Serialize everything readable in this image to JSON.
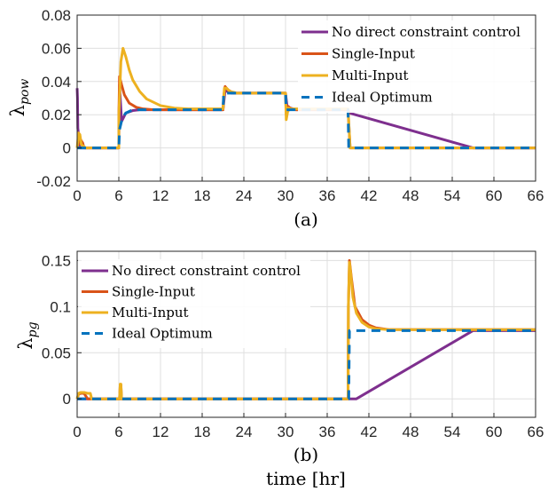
{
  "chart_data": [
    {
      "type": "line",
      "subtitle": "(a)",
      "xlabel": "",
      "ylabel": "λ",
      "ylabel_sub": "pow",
      "xlim": [
        0,
        66
      ],
      "ylim": [
        -0.02,
        0.08
      ],
      "xticks": [
        "0",
        "6",
        "12",
        "18",
        "24",
        "30",
        "36",
        "42",
        "48",
        "54",
        "60",
        "66"
      ],
      "yticks": [
        "-0.02",
        "0",
        "0.02",
        "0.04",
        "0.06",
        "0.08"
      ],
      "grid": true,
      "legend_position": "top-right",
      "series": [
        {
          "name": "No direct constraint control",
          "color": "#7E2F8E",
          "dashed": false,
          "x": [
            0,
            0.05,
            0.1,
            0.4,
            6.0,
            6.01,
            6.1,
            6.4,
            7,
            8,
            9,
            10,
            12,
            21,
            21.3,
            21.6,
            22.2,
            30,
            30.3,
            30.7,
            31.5,
            39,
            39.2,
            57,
            66
          ],
          "y": [
            0.036,
            0.03,
            0.012,
            0,
            0,
            0.008,
            0.038,
            0.016,
            0.021,
            0.0225,
            0.023,
            0.023,
            0.023,
            0.023,
            0.035,
            0.034,
            0.033,
            0.033,
            0.022,
            0.024,
            0.023,
            0.023,
            0.021,
            0,
            0
          ]
        },
        {
          "name": "Single-Input",
          "color": "#D95319",
          "dashed": false,
          "x": [
            0,
            0.3,
            0.5,
            0.8,
            1.0,
            6.0,
            6.01,
            6.1,
            6.4,
            6.8,
            7.5,
            8.5,
            9.5,
            11,
            21,
            21.1,
            21.3,
            21.7,
            22.5,
            30,
            30.1,
            30.4,
            30.8,
            31.5,
            39,
            39.3,
            66
          ],
          "y": [
            0,
            0.005,
            0.005,
            0.003,
            0,
            0,
            0.02,
            0.043,
            0.038,
            0.032,
            0.027,
            0.0245,
            0.0235,
            0.023,
            0.023,
            0.031,
            0.037,
            0.035,
            0.033,
            0.033,
            0.02,
            0.025,
            0.0235,
            0.023,
            0.023,
            0,
            0
          ]
        },
        {
          "name": "Multi-Input",
          "color": "#EDB120",
          "dashed": false,
          "x": [
            0,
            0.2,
            0.4,
            0.6,
            0.9,
            1.2,
            6.0,
            6.01,
            6.3,
            6.6,
            7.0,
            7.5,
            8.0,
            9,
            10,
            12,
            14,
            16,
            21,
            21.2,
            21.5,
            22,
            23,
            30,
            30.1,
            30.4,
            30.8,
            39,
            39.3,
            66
          ],
          "y": [
            0,
            0.009,
            0.008,
            0.002,
            0.001,
            0,
            0,
            0.02,
            0.052,
            0.06,
            0.055,
            0.047,
            0.041,
            0.034,
            0.0295,
            0.0255,
            0.024,
            0.0235,
            0.0235,
            0.036,
            0.036,
            0.034,
            0.033,
            0.033,
            0.017,
            0.024,
            0.0235,
            0.0235,
            0,
            0
          ]
        },
        {
          "name": "Ideal Optimum",
          "color": "#0072BD",
          "dashed": true,
          "x": [
            0,
            6.0,
            6.1,
            6.5,
            7.0,
            8.0,
            21,
            21.1,
            30,
            30.1,
            39,
            39.1,
            66
          ],
          "y": [
            0,
            0,
            0.011,
            0.018,
            0.021,
            0.023,
            0.023,
            0.033,
            0.033,
            0.023,
            0.023,
            0,
            0
          ]
        }
      ]
    },
    {
      "type": "line",
      "subtitle": "(b)",
      "xlabel": "time [hr]",
      "ylabel": "λ",
      "ylabel_sub": "pg",
      "xlim": [
        0,
        66
      ],
      "ylim": [
        -0.02,
        0.16
      ],
      "xticks": [
        "0",
        "6",
        "12",
        "18",
        "24",
        "30",
        "36",
        "42",
        "48",
        "54",
        "60",
        "66"
      ],
      "yticks": [
        "0",
        "0.05",
        "0.1",
        "0.15"
      ],
      "yticks_values": [
        0,
        0.05,
        0.1,
        0.15
      ],
      "grid": true,
      "legend_position": "top-left",
      "series": [
        {
          "name": "No direct constraint control",
          "color": "#7E2F8E",
          "dashed": false,
          "x": [
            0,
            40.2,
            57,
            66
          ],
          "y": [
            0,
            0,
            0.074,
            0.074
          ]
        },
        {
          "name": "Single-Input",
          "color": "#D95319",
          "dashed": false,
          "x": [
            0,
            0.2,
            0.5,
            1.0,
            1.5,
            6.1,
            6.2,
            6.3,
            6.4,
            39,
            39.05,
            39.2,
            39.5,
            40,
            41,
            42,
            43,
            45,
            66
          ],
          "y": [
            0,
            0.005,
            0.006,
            0.006,
            0,
            0,
            0.015,
            0.015,
            0,
            0,
            0.1,
            0.15,
            0.13,
            0.1,
            0.086,
            0.08,
            0.077,
            0.075,
            0.075
          ]
        },
        {
          "name": "Multi-Input",
          "color": "#EDB120",
          "dashed": false,
          "x": [
            0,
            0.2,
            0.5,
            1.0,
            1.5,
            1.9,
            2.1,
            6.1,
            6.2,
            6.3,
            6.4,
            39,
            39.05,
            39.2,
            39.4,
            39.7,
            40.2,
            41,
            42,
            43,
            45,
            66
          ],
          "y": [
            0,
            0.006,
            0.007,
            0.007,
            0.006,
            0.006,
            0,
            0,
            0.016,
            0.016,
            0,
            0,
            0.1,
            0.148,
            0.135,
            0.11,
            0.093,
            0.083,
            0.078,
            0.076,
            0.075,
            0.075
          ]
        },
        {
          "name": "Ideal Optimum",
          "color": "#0072BD",
          "dashed": true,
          "x": [
            0,
            39.1,
            39.2,
            40,
            66
          ],
          "y": [
            0,
            0,
            0.074,
            0.074,
            0.074
          ]
        }
      ]
    }
  ]
}
